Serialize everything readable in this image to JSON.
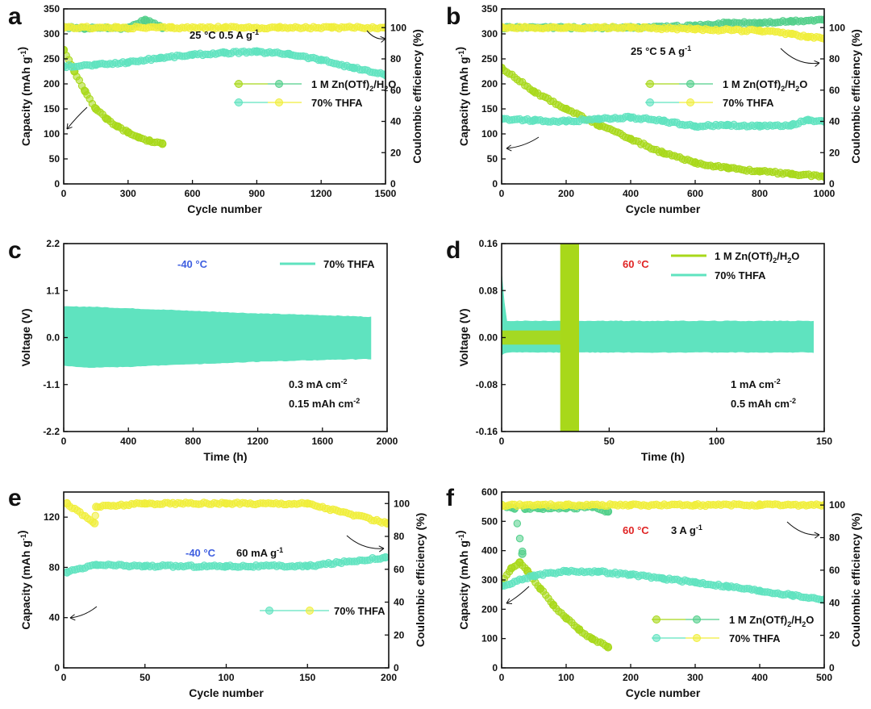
{
  "colors": {
    "zn": "#a8d81a",
    "zn_marker_fill": "#c8e84a",
    "thfa": "#5fe3bf",
    "thfa_marker_fill": "#7ee8cc",
    "ce_yellow": "#f0ee3a",
    "ce_green": "#52cf8a",
    "temp_blue": "#3f5fe0",
    "temp_red": "#e02424"
  },
  "panels": {
    "a": {
      "label": "a",
      "xlabel": "Cycle number",
      "ylabel_left": "Capacity (mAh g-1)",
      "ylabel_right": "Coulombic efficiency (%)",
      "annotation_temp": "25 °C",
      "annotation_rate": "0.5 A g-1",
      "legend": [
        "1 M Zn(OTf)2/H2O",
        "70% THFA"
      ]
    },
    "b": {
      "label": "b",
      "xlabel": "Cycle number",
      "ylabel_left": "Capacity (mAh g-1)",
      "ylabel_right": "Coulombic efficiency (%)",
      "annotation_temp": "25 °C",
      "annotation_rate": "5 A g-1",
      "legend": [
        "1 M Zn(OTf)2/H2O",
        "70% THFA"
      ]
    },
    "c": {
      "label": "c",
      "xlabel": "Time (h)",
      "ylabel_left": "Voltage (V)",
      "annotation_temp": "-40 °C",
      "annotation_current": "0.3 mA cm-2",
      "annotation_capacity": "0.15 mAh cm-2",
      "legend": [
        "70% THFA"
      ]
    },
    "d": {
      "label": "d",
      "xlabel": "Time (h)",
      "ylabel_left": "Voltage (V)",
      "annotation_temp": "60 °C",
      "annotation_current": "1 mA cm-2",
      "annotation_capacity": "0.5 mAh cm-2",
      "legend": [
        "1 M Zn(OTf)2/H2O",
        "70% THFA"
      ]
    },
    "e": {
      "label": "e",
      "xlabel": "Cycle number",
      "ylabel_left": "Capacity (mAh g-1)",
      "ylabel_right": "Coulombic efficiency (%)",
      "annotation_temp": "-40 °C",
      "annotation_rate": "60 mA g-1",
      "legend": [
        "70% THFA"
      ]
    },
    "f": {
      "label": "f",
      "xlabel": "Cycle number",
      "ylabel_left": "Capacity (mAh g-1)",
      "ylabel_right": "Coulombic efficiency (%)",
      "annotation_temp": "60 °C",
      "annotation_rate": "3 A g-1",
      "legend": [
        "1 M Zn(OTf)2/H2O",
        "70% THFA"
      ]
    }
  },
  "chart_data": [
    {
      "panel": "a",
      "type": "scatter",
      "xlim": [
        0,
        1500
      ],
      "xticks": [
        0,
        300,
        600,
        900,
        1200,
        1500
      ],
      "ylim": [
        0,
        350
      ],
      "yticks": [
        0,
        50,
        100,
        150,
        200,
        250,
        300,
        350
      ],
      "y2lim": [
        0,
        112
      ],
      "y2ticks": [
        0,
        20,
        40,
        60,
        80,
        100
      ],
      "series": [
        {
          "name": "1 M Zn(OTf)2/H2O capacity",
          "axis": "left",
          "color": "zn",
          "x": [
            0,
            50,
            100,
            150,
            200,
            250,
            300,
            350,
            400,
            460
          ],
          "y": [
            268,
            225,
            185,
            150,
            130,
            115,
            103,
            93,
            86,
            80
          ]
        },
        {
          "name": "70% THFA capacity",
          "axis": "left",
          "color": "thfa",
          "x": [
            0,
            150,
            300,
            450,
            600,
            750,
            900,
            1050,
            1200,
            1350,
            1500
          ],
          "y": [
            235,
            238,
            243,
            252,
            258,
            262,
            264,
            260,
            248,
            232,
            218
          ]
        },
        {
          "name": "1 M Zn(OTf)2/H2O CE",
          "axis": "right",
          "color": "ce_green",
          "x": [
            0,
            100,
            200,
            300,
            380,
            460
          ],
          "y": [
            100,
            99.6,
            100,
            99.5,
            105,
            99.8
          ]
        },
        {
          "name": "70% THFA CE",
          "axis": "right",
          "color": "ce_yellow",
          "x": [
            0,
            250,
            500,
            750,
            1000,
            1250,
            1500
          ],
          "y": [
            100,
            100,
            100,
            100,
            100,
            100,
            100
          ]
        }
      ]
    },
    {
      "panel": "b",
      "type": "scatter",
      "xlim": [
        0,
        1000
      ],
      "xticks": [
        0,
        200,
        400,
        600,
        800,
        1000
      ],
      "ylim": [
        0,
        350
      ],
      "yticks": [
        0,
        50,
        100,
        150,
        200,
        250,
        300,
        350
      ],
      "y2lim": [
        0,
        112
      ],
      "y2ticks": [
        0,
        20,
        40,
        60,
        80,
        100
      ],
      "series": [
        {
          "name": "1 M Zn(OTf)2/H2O capacity",
          "axis": "left",
          "color": "zn",
          "x": [
            0,
            100,
            200,
            300,
            400,
            500,
            600,
            700,
            800,
            900,
            1000
          ],
          "y": [
            232,
            185,
            150,
            118,
            90,
            62,
            42,
            32,
            25,
            20,
            15
          ]
        },
        {
          "name": "70% THFA capacity",
          "axis": "left",
          "color": "thfa",
          "x": [
            0,
            100,
            200,
            300,
            400,
            500,
            600,
            700,
            800,
            900,
            950,
            1000
          ],
          "y": [
            130,
            127,
            125,
            130,
            133,
            126,
            115,
            118,
            115,
            118,
            128,
            125
          ]
        },
        {
          "name": "1 M Zn(OTf)2/H2O CE",
          "axis": "right",
          "color": "ce_green",
          "x": [
            0,
            200,
            400,
            600,
            700,
            800,
            900,
            1000
          ],
          "y": [
            100,
            100,
            100,
            101,
            103,
            103,
            104,
            105
          ]
        },
        {
          "name": "70% THFA CE",
          "axis": "right",
          "color": "ce_yellow",
          "x": [
            0,
            200,
            400,
            600,
            800,
            900,
            950,
            1000
          ],
          "y": [
            100,
            100,
            100,
            99,
            98,
            96,
            94,
            93
          ]
        }
      ]
    },
    {
      "panel": "c",
      "type": "line",
      "xlim": [
        0,
        2000
      ],
      "xticks": [
        0,
        400,
        800,
        1200,
        1600,
        2000
      ],
      "ylim": [
        -2.2,
        2.2
      ],
      "yticks": [
        -2.2,
        -1.1,
        0.0,
        1.1,
        2.2
      ],
      "series": [
        {
          "name": "70% THFA voltage envelope",
          "color": "thfa",
          "x": [
            0,
            150,
            400,
            800,
            1200,
            1600,
            1900
          ],
          "upper": [
            0.72,
            0.72,
            0.68,
            0.62,
            0.56,
            0.52,
            0.48
          ],
          "lower": [
            -0.65,
            -0.7,
            -0.68,
            -0.62,
            -0.56,
            -0.52,
            -0.5
          ]
        }
      ]
    },
    {
      "panel": "d",
      "type": "line",
      "xlim": [
        0,
        150
      ],
      "xticks": [
        0,
        50,
        100,
        150
      ],
      "ylim": [
        -0.16,
        0.16
      ],
      "yticks": [
        -0.16,
        -0.08,
        0.0,
        0.08,
        0.16
      ],
      "series": [
        {
          "name": "70% THFA voltage envelope",
          "color": "thfa",
          "x": [
            0,
            2,
            10,
            50,
            100,
            145
          ],
          "upper": [
            0.11,
            0.028,
            0.028,
            0.028,
            0.028,
            0.028
          ],
          "lower": [
            -0.03,
            -0.025,
            -0.025,
            -0.025,
            -0.025,
            -0.025
          ]
        },
        {
          "name": "1 M Zn(OTf)2/H2O voltage envelope",
          "color": "zn",
          "x": [
            0,
            28,
            28,
            36
          ],
          "upper": [
            0.02,
            0.012,
            0.16,
            0.16
          ],
          "lower": [
            -0.02,
            -0.012,
            -0.16,
            -0.16
          ]
        }
      ]
    },
    {
      "panel": "e",
      "type": "scatter",
      "xlim": [
        0,
        200
      ],
      "xticks": [
        0,
        50,
        100,
        150,
        200
      ],
      "ylim": [
        0,
        140
      ],
      "yticks": [
        0,
        40,
        80,
        120
      ],
      "y2lim": [
        0,
        107
      ],
      "y2ticks": [
        0,
        20,
        40,
        60,
        80,
        100
      ],
      "series": [
        {
          "name": "70% THFA capacity",
          "axis": "left",
          "color": "thfa",
          "x": [
            2,
            20,
            50,
            100,
            150,
            198
          ],
          "y": [
            76,
            82,
            81,
            81,
            81,
            88
          ]
        },
        {
          "name": "70% THFA CE",
          "axis": "right",
          "color": "ce_yellow",
          "x": [
            2,
            19,
            20,
            50,
            100,
            150,
            199
          ],
          "y": [
            100,
            88,
            98,
            100,
            100,
            100,
            88
          ]
        }
      ]
    },
    {
      "panel": "f",
      "type": "scatter",
      "xlim": [
        0,
        500
      ],
      "xticks": [
        0,
        100,
        200,
        300,
        400,
        500
      ],
      "ylim": [
        0,
        600
      ],
      "yticks": [
        0,
        100,
        200,
        300,
        400,
        500,
        600
      ],
      "y2lim": [
        0,
        108
      ],
      "y2ticks": [
        0,
        20,
        40,
        60,
        80,
        100
      ],
      "series": [
        {
          "name": "1 M Zn(OTf)2/H2O capacity",
          "axis": "left",
          "color": "zn",
          "x": [
            0,
            15,
            28,
            40,
            60,
            80,
            100,
            120,
            140,
            165
          ],
          "y": [
            290,
            340,
            360,
            330,
            270,
            215,
            170,
            130,
            100,
            70
          ]
        },
        {
          "name": "70% THFA capacity",
          "axis": "left",
          "color": "thfa",
          "x": [
            0,
            50,
            100,
            150,
            200,
            250,
            300,
            350,
            400,
            450,
            500
          ],
          "y": [
            280,
            315,
            330,
            328,
            318,
            305,
            292,
            278,
            263,
            248,
            233
          ]
        },
        {
          "name": "1 M Zn(OTf)2/H2O CE",
          "axis": "right",
          "color": "ce_green",
          "x": [
            0,
            20,
            32,
            36,
            60,
            100,
            140,
            165
          ],
          "y": [
            100,
            98,
            70,
            98,
            98,
            98,
            99,
            96
          ]
        },
        {
          "name": "70% THFA CE",
          "axis": "right",
          "color": "ce_yellow",
          "x": [
            0,
            100,
            200,
            300,
            400,
            500
          ],
          "y": [
            100,
            100,
            100,
            100,
            100,
            100
          ]
        }
      ]
    }
  ]
}
